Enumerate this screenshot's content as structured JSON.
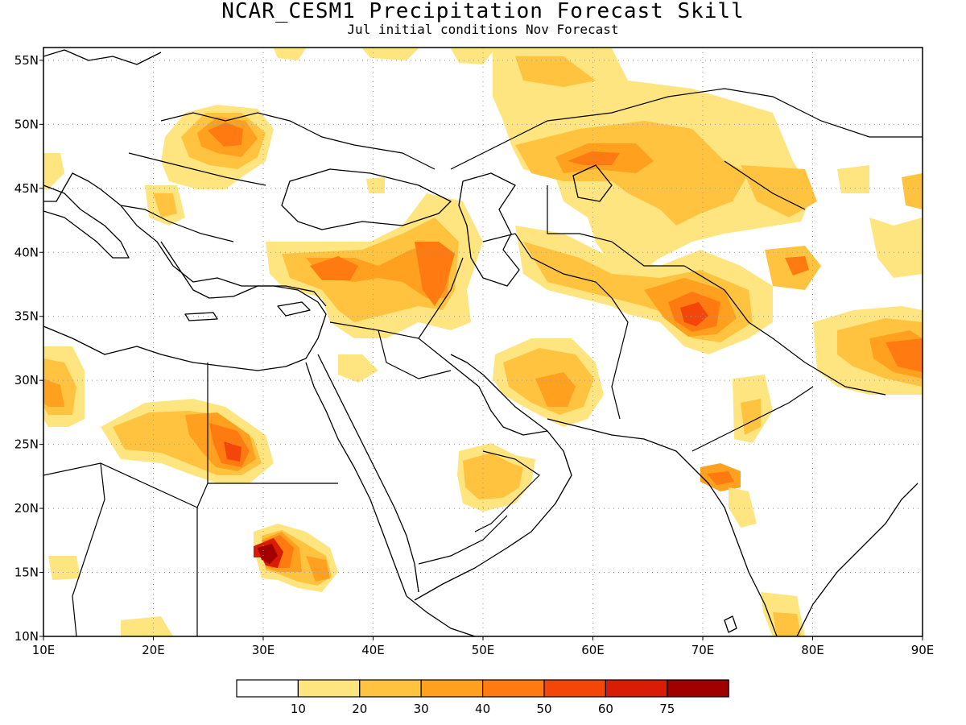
{
  "title": "NCAR_CESM1 Precipitation Forecast Skill",
  "subtitle": "Jul initial conditions   Nov Forecast",
  "map": {
    "lon_range": [
      10,
      90
    ],
    "lat_range": [
      10,
      56
    ],
    "lon_ticks": [
      "10E",
      "20E",
      "30E",
      "40E",
      "50E",
      "60E",
      "70E",
      "80E",
      "90E"
    ],
    "lat_ticks": [
      "10N",
      "15N",
      "20N",
      "25N",
      "30N",
      "35N",
      "40N",
      "45N",
      "50N",
      "55N"
    ],
    "grid": "dotted"
  },
  "colorbar": {
    "labels": [
      "10",
      "20",
      "30",
      "40",
      "50",
      "60",
      "75"
    ],
    "colors": [
      "#ffffff",
      "#ffe57f",
      "#ffc340",
      "#ffa01f",
      "#ff7a10",
      "#f5460a",
      "#d81c05",
      "#a00000"
    ]
  },
  "skill_regions": [
    {
      "name": "kazakhstan",
      "lon": 62,
      "lat": 47,
      "level": 4
    },
    {
      "name": "afghanistan",
      "lon": 70,
      "lat": 35,
      "level": 4
    },
    {
      "name": "northeast-iraq",
      "lon": 46,
      "lat": 38,
      "level": 4
    },
    {
      "name": "turkey",
      "lon": 40,
      "lat": 39,
      "level": 3
    },
    {
      "name": "sudan",
      "lon": 31,
      "lat": 17,
      "level": 6
    },
    {
      "name": "egypt",
      "lon": 27,
      "lat": 25,
      "level": 4
    },
    {
      "name": "hungary",
      "lon": 27,
      "lat": 49,
      "level": 4
    },
    {
      "name": "tibet",
      "lon": 89,
      "lat": 32,
      "level": 4
    },
    {
      "name": "iran",
      "lon": 56,
      "lat": 30,
      "level": 2
    },
    {
      "name": "oman",
      "lon": 51,
      "lat": 22,
      "level": 2
    },
    {
      "name": "gujarat",
      "lon": 71,
      "lat": 22,
      "level": 4
    },
    {
      "name": "libya",
      "lon": 12,
      "lat": 29,
      "level": 3
    }
  ]
}
